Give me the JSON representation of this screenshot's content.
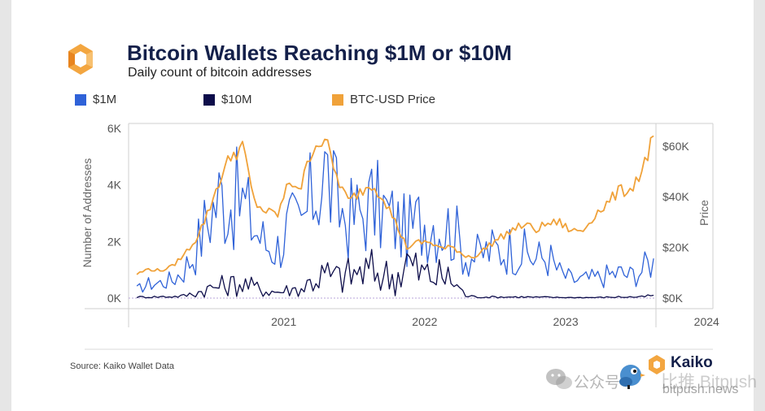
{
  "header": {
    "title": "Bitcoin Wallets Reaching $1M or $10M",
    "subtitle": "Daily count of bitcoin addresses",
    "logo_icon": "kaiko-logo-icon"
  },
  "legend": [
    {
      "label": "$1M",
      "color": "#2f62d8"
    },
    {
      "label": "$10M",
      "color": "#0d0d4a"
    },
    {
      "label": "BTC-USD Price",
      "color": "#f0a23a"
    }
  ],
  "footer": {
    "source": "Source: Kaiko Wallet Data",
    "brand": "Kaiko",
    "watermark_chinese": "公众号 ·",
    "watermark_brand": "比推 Bitpush",
    "watermark_url": "bitpush.news",
    "icons": [
      "wechat-icon",
      "bird-mascot-icon"
    ]
  },
  "chart_data": {
    "type": "line",
    "title": "Bitcoin Wallets Reaching $1M or $10M",
    "subtitle": "Daily count of bitcoin addresses",
    "ylabel": "Number of Addresses",
    "y2label": "Price",
    "ylim": [
      0,
      6000
    ],
    "y2lim": [
      0,
      67000
    ],
    "x_range": [
      "2020-07",
      "2024-03"
    ],
    "yticks": [
      0,
      2000,
      4000,
      6000
    ],
    "ytick_labels": [
      "0K",
      "2K",
      "4K",
      "6K"
    ],
    "y2ticks": [
      0,
      20000,
      40000,
      60000
    ],
    "y2tick_labels": [
      "$0K",
      "$20K",
      "$40K",
      "$60K"
    ],
    "xticks": [
      "2021-01",
      "2022-01",
      "2023-01",
      "2024-01"
    ],
    "xtick_labels": [
      "2021",
      "2022",
      "2023",
      "2024"
    ],
    "grid": false,
    "legend_position": "top",
    "series": [
      {
        "name": "$1M",
        "axis": "left",
        "color": "#2f62d8",
        "points": [
          [
            "2020-07",
            300
          ],
          [
            "2020-08",
            500
          ],
          [
            "2020-09",
            550
          ],
          [
            "2020-10",
            650
          ],
          [
            "2020-11",
            1000
          ],
          [
            "2020-12",
            1700
          ],
          [
            "2021-01",
            2800
          ],
          [
            "2021-02",
            3600
          ],
          [
            "2021-03",
            3500
          ],
          [
            "2021-04",
            3400
          ],
          [
            "2021-05",
            2500
          ],
          [
            "2021-06",
            1900
          ],
          [
            "2021-07",
            1800
          ],
          [
            "2021-08",
            2600
          ],
          [
            "2021-09",
            2400
          ],
          [
            "2021-10",
            3700
          ],
          [
            "2021-11",
            4500
          ],
          [
            "2021-12",
            3300
          ],
          [
            "2022-01",
            2800
          ],
          [
            "2022-02",
            3000
          ],
          [
            "2022-03",
            3300
          ],
          [
            "2022-04",
            3100
          ],
          [
            "2022-05",
            2700
          ],
          [
            "2022-06",
            2300
          ],
          [
            "2022-07",
            2700
          ],
          [
            "2022-08",
            2800
          ],
          [
            "2022-09",
            2600
          ],
          [
            "2022-10",
            2400
          ],
          [
            "2022-11",
            1500
          ],
          [
            "2022-12",
            1500
          ],
          [
            "2023-01",
            1700
          ],
          [
            "2023-02",
            1700
          ],
          [
            "2023-03",
            1800
          ],
          [
            "2023-04",
            1600
          ],
          [
            "2023-05",
            1400
          ],
          [
            "2023-06",
            1500
          ],
          [
            "2023-07",
            900
          ],
          [
            "2023-08",
            650
          ],
          [
            "2023-09",
            650
          ],
          [
            "2023-10",
            700
          ],
          [
            "2023-11",
            800
          ],
          [
            "2023-12",
            900
          ],
          [
            "2024-01",
            800
          ],
          [
            "2024-02",
            1000
          ],
          [
            "2024-03",
            1400
          ]
        ]
      },
      {
        "name": "$10M",
        "axis": "left",
        "color": "#0d0d4a",
        "points": [
          [
            "2020-07",
            40
          ],
          [
            "2020-08",
            40
          ],
          [
            "2020-09",
            50
          ],
          [
            "2020-10",
            50
          ],
          [
            "2020-11",
            80
          ],
          [
            "2020-12",
            180
          ],
          [
            "2021-01",
            320
          ],
          [
            "2021-02",
            420
          ],
          [
            "2021-03",
            480
          ],
          [
            "2021-04",
            520
          ],
          [
            "2021-05",
            380
          ],
          [
            "2021-06",
            260
          ],
          [
            "2021-07",
            220
          ],
          [
            "2021-08",
            300
          ],
          [
            "2021-09",
            330
          ],
          [
            "2021-10",
            650
          ],
          [
            "2021-11",
            820
          ],
          [
            "2021-12",
            720
          ],
          [
            "2022-01",
            800
          ],
          [
            "2022-02",
            900
          ],
          [
            "2022-03",
            950
          ],
          [
            "2022-04",
            850
          ],
          [
            "2022-05",
            700
          ],
          [
            "2022-06",
            1300
          ],
          [
            "2022-07",
            900
          ],
          [
            "2022-08",
            800
          ],
          [
            "2022-09",
            750
          ],
          [
            "2022-10",
            600
          ],
          [
            "2022-11",
            80
          ],
          [
            "2022-12",
            40
          ],
          [
            "2023-01",
            40
          ],
          [
            "2023-02",
            40
          ],
          [
            "2023-03",
            40
          ],
          [
            "2023-04",
            40
          ],
          [
            "2023-05",
            30
          ],
          [
            "2023-06",
            30
          ],
          [
            "2023-07",
            20
          ],
          [
            "2023-08",
            20
          ],
          [
            "2023-09",
            20
          ],
          [
            "2023-10",
            20
          ],
          [
            "2023-11",
            30
          ],
          [
            "2023-12",
            40
          ],
          [
            "2024-01",
            40
          ],
          [
            "2024-02",
            40
          ],
          [
            "2024-03",
            100
          ]
        ]
      },
      {
        "name": "BTC-USD Price",
        "axis": "right",
        "color": "#f0a23a",
        "points": [
          [
            "2020-07",
            9500
          ],
          [
            "2020-08",
            11500
          ],
          [
            "2020-09",
            10800
          ],
          [
            "2020-10",
            12500
          ],
          [
            "2020-11",
            17000
          ],
          [
            "2020-12",
            23000
          ],
          [
            "2021-01",
            33000
          ],
          [
            "2021-02",
            46000
          ],
          [
            "2021-03",
            56000
          ],
          [
            "2021-04",
            60000
          ],
          [
            "2021-05",
            38000
          ],
          [
            "2021-06",
            34000
          ],
          [
            "2021-07",
            33000
          ],
          [
            "2021-08",
            46000
          ],
          [
            "2021-09",
            44000
          ],
          [
            "2021-10",
            60000
          ],
          [
            "2021-11",
            63000
          ],
          [
            "2021-12",
            48000
          ],
          [
            "2022-01",
            38000
          ],
          [
            "2022-02",
            42000
          ],
          [
            "2022-03",
            45000
          ],
          [
            "2022-04",
            40000
          ],
          [
            "2022-05",
            30000
          ],
          [
            "2022-06",
            20000
          ],
          [
            "2022-07",
            22000
          ],
          [
            "2022-08",
            22000
          ],
          [
            "2022-09",
            19500
          ],
          [
            "2022-10",
            20000
          ],
          [
            "2022-11",
            16500
          ],
          [
            "2022-12",
            16800
          ],
          [
            "2023-01",
            21000
          ],
          [
            "2023-02",
            24000
          ],
          [
            "2023-03",
            27000
          ],
          [
            "2023-04",
            29000
          ],
          [
            "2023-05",
            27000
          ],
          [
            "2023-06",
            29500
          ],
          [
            "2023-07",
            29800
          ],
          [
            "2023-08",
            26500
          ],
          [
            "2023-09",
            26800
          ],
          [
            "2023-10",
            33000
          ],
          [
            "2023-11",
            37000
          ],
          [
            "2023-12",
            42000
          ],
          [
            "2024-01",
            43000
          ],
          [
            "2024-02",
            50000
          ],
          [
            "2024-03",
            64000
          ]
        ]
      }
    ]
  }
}
